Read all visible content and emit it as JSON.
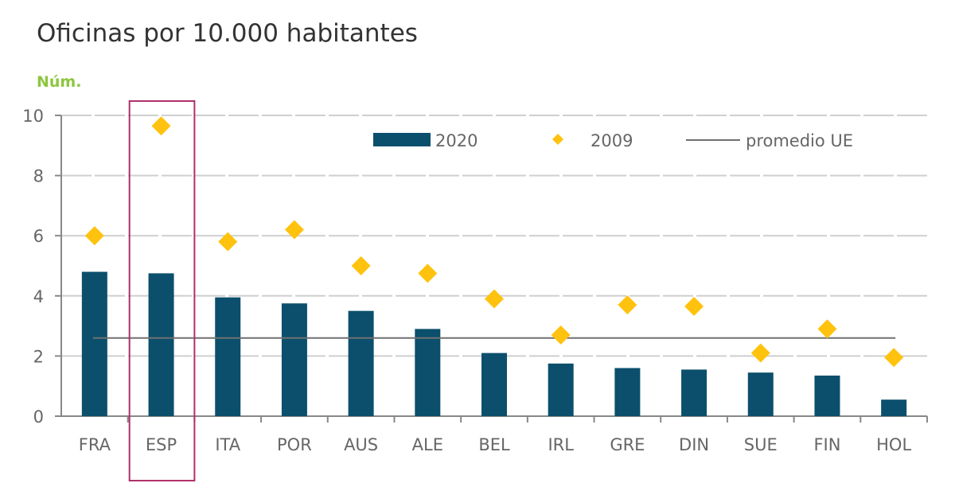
{
  "chart_data": {
    "type": "bar",
    "title": "Oficinas por 10.000 habitantes",
    "ylabel": "Núm.",
    "xlabel": "",
    "ylim": [
      0,
      10
    ],
    "yticks": [
      0,
      2,
      4,
      6,
      8,
      10
    ],
    "grid": true,
    "legend_position": "top-right",
    "categories": [
      "FRA",
      "ESP",
      "ITA",
      "POR",
      "AUS",
      "ALE",
      "BEL",
      "IRL",
      "GRE",
      "DIN",
      "SUE",
      "FIN",
      "HOL"
    ],
    "highlight": "ESP",
    "series": [
      {
        "name": "2020",
        "kind": "bar",
        "color": "#0b4f6c",
        "values": [
          4.8,
          4.75,
          3.95,
          3.75,
          3.5,
          2.9,
          2.1,
          1.75,
          1.6,
          1.55,
          1.45,
          1.35,
          0.55
        ]
      },
      {
        "name": "2009",
        "kind": "marker-diamond",
        "color": "#ffc20e",
        "values": [
          6.0,
          9.65,
          5.8,
          6.2,
          5.0,
          4.75,
          3.9,
          2.7,
          3.7,
          3.65,
          2.1,
          2.9,
          1.95
        ]
      },
      {
        "name": "promedio UE",
        "kind": "line",
        "color": "#707070",
        "value": 2.6
      }
    ],
    "colors": {
      "highlight_box": "#b0306a",
      "unit_label": "#8dc63f"
    }
  }
}
